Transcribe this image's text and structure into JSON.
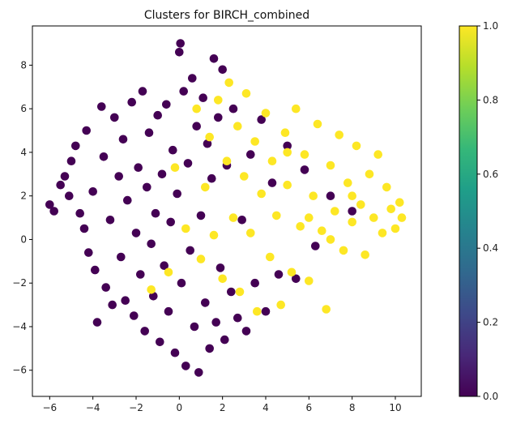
{
  "chart_data": {
    "type": "scatter",
    "title": "Clusters for BIRCH_combined",
    "xlabel": "",
    "ylabel": "",
    "xlim": [
      -6.8,
      11.2
    ],
    "ylim": [
      -7.2,
      9.8
    ],
    "xticks": [
      -6,
      -4,
      -2,
      0,
      2,
      4,
      6,
      8,
      10
    ],
    "yticks": [
      -6,
      -4,
      -2,
      0,
      2,
      4,
      6,
      8
    ],
    "grid": false,
    "colormap": "viridis",
    "colorbar": {
      "range": [
        0.0,
        1.0
      ],
      "ticks": [
        "0.0",
        "0.2",
        "0.4",
        "0.6",
        "0.8",
        "1.0"
      ],
      "stops": [
        "#440154",
        "#482878",
        "#3e4989",
        "#31688e",
        "#26828e",
        "#1f9e89",
        "#35b779",
        "#6ece58",
        "#b5de2b",
        "#fde725"
      ]
    },
    "series": [
      {
        "cluster": 0,
        "color": "#440154",
        "points": [
          [
            -6.0,
            1.6
          ],
          [
            -5.8,
            1.3
          ],
          [
            -5.5,
            2.5
          ],
          [
            -5.3,
            2.9
          ],
          [
            -5.1,
            2.0
          ],
          [
            -5.0,
            3.6
          ],
          [
            -4.8,
            4.3
          ],
          [
            -4.6,
            1.2
          ],
          [
            -4.4,
            0.5
          ],
          [
            -4.3,
            5.0
          ],
          [
            -4.2,
            -0.6
          ],
          [
            -4.0,
            2.2
          ],
          [
            -3.9,
            -1.4
          ],
          [
            -3.8,
            -3.8
          ],
          [
            -3.6,
            6.1
          ],
          [
            -3.5,
            3.8
          ],
          [
            -3.4,
            -2.2
          ],
          [
            -3.2,
            0.9
          ],
          [
            -3.1,
            -3.0
          ],
          [
            -3.0,
            5.6
          ],
          [
            -2.8,
            2.9
          ],
          [
            -2.7,
            -0.8
          ],
          [
            -2.6,
            4.6
          ],
          [
            -2.5,
            -2.8
          ],
          [
            -2.4,
            1.8
          ],
          [
            -2.2,
            6.3
          ],
          [
            -2.1,
            -3.5
          ],
          [
            -2.0,
            0.3
          ],
          [
            -1.9,
            3.3
          ],
          [
            -1.8,
            -1.6
          ],
          [
            -1.7,
            6.8
          ],
          [
            -1.6,
            -4.2
          ],
          [
            -1.5,
            2.4
          ],
          [
            -1.4,
            4.9
          ],
          [
            -1.3,
            -0.2
          ],
          [
            -1.2,
            -2.6
          ],
          [
            -1.1,
            1.2
          ],
          [
            -1.0,
            5.7
          ],
          [
            -0.9,
            -4.7
          ],
          [
            -0.8,
            3.0
          ],
          [
            -0.7,
            -1.2
          ],
          [
            -0.6,
            6.2
          ],
          [
            -0.5,
            -3.3
          ],
          [
            -0.4,
            0.8
          ],
          [
            -0.3,
            4.1
          ],
          [
            -0.2,
            -5.2
          ],
          [
            -0.1,
            2.1
          ],
          [
            0.0,
            8.6
          ],
          [
            0.05,
            9.0
          ],
          [
            0.1,
            -2.0
          ],
          [
            0.2,
            6.8
          ],
          [
            0.3,
            -5.8
          ],
          [
            0.4,
            3.5
          ],
          [
            0.5,
            -0.5
          ],
          [
            0.6,
            7.4
          ],
          [
            0.7,
            -4.0
          ],
          [
            0.8,
            5.2
          ],
          [
            0.9,
            -6.1
          ],
          [
            1.0,
            1.1
          ],
          [
            1.1,
            6.5
          ],
          [
            1.2,
            -2.9
          ],
          [
            1.3,
            4.4
          ],
          [
            1.4,
            -5.0
          ],
          [
            1.5,
            2.8
          ],
          [
            1.6,
            8.3
          ],
          [
            1.7,
            -3.8
          ],
          [
            1.8,
            5.6
          ],
          [
            1.9,
            -1.3
          ],
          [
            2.0,
            7.8
          ],
          [
            2.1,
            -4.6
          ],
          [
            2.2,
            3.4
          ],
          [
            2.4,
            -2.4
          ],
          [
            2.5,
            6.0
          ],
          [
            2.7,
            -3.6
          ],
          [
            2.9,
            0.9
          ],
          [
            3.1,
            -4.2
          ],
          [
            3.3,
            3.9
          ],
          [
            3.5,
            -2.0
          ],
          [
            3.8,
            5.5
          ],
          [
            4.0,
            -3.3
          ],
          [
            4.3,
            2.6
          ],
          [
            4.6,
            -1.6
          ],
          [
            5.0,
            4.3
          ],
          [
            5.4,
            -1.8
          ],
          [
            5.8,
            3.2
          ],
          [
            6.3,
            -0.3
          ],
          [
            7.0,
            2.0
          ],
          [
            8.0,
            1.3
          ]
        ]
      },
      {
        "cluster": 1,
        "color": "#fde725",
        "points": [
          [
            -0.5,
            -1.5
          ],
          [
            -1.3,
            -2.3
          ],
          [
            -0.2,
            3.3
          ],
          [
            0.3,
            0.5
          ],
          [
            0.8,
            6.0
          ],
          [
            1.0,
            -0.9
          ],
          [
            1.2,
            2.4
          ],
          [
            1.4,
            4.7
          ],
          [
            1.6,
            0.2
          ],
          [
            1.8,
            6.4
          ],
          [
            2.0,
            -1.8
          ],
          [
            2.2,
            3.6
          ],
          [
            2.3,
            7.2
          ],
          [
            2.5,
            1.0
          ],
          [
            2.7,
            5.2
          ],
          [
            2.8,
            -2.4
          ],
          [
            3.0,
            2.9
          ],
          [
            3.1,
            6.7
          ],
          [
            3.3,
            0.3
          ],
          [
            3.5,
            4.5
          ],
          [
            3.6,
            -3.3
          ],
          [
            3.8,
            2.1
          ],
          [
            4.0,
            5.8
          ],
          [
            4.2,
            -0.8
          ],
          [
            4.3,
            3.6
          ],
          [
            4.5,
            1.1
          ],
          [
            4.7,
            -3.0
          ],
          [
            4.9,
            4.9
          ],
          [
            5.0,
            2.5
          ],
          [
            5.2,
            -1.5
          ],
          [
            5.4,
            6.0
          ],
          [
            5.6,
            0.6
          ],
          [
            5.8,
            3.9
          ],
          [
            6.0,
            -1.9
          ],
          [
            6.2,
            2.0
          ],
          [
            6.4,
            5.3
          ],
          [
            6.6,
            0.4
          ],
          [
            6.8,
            -3.2
          ],
          [
            7.0,
            3.4
          ],
          [
            7.2,
            1.3
          ],
          [
            7.4,
            4.8
          ],
          [
            7.6,
            -0.5
          ],
          [
            7.8,
            2.6
          ],
          [
            8.0,
            0.8
          ],
          [
            8.2,
            4.3
          ],
          [
            8.4,
            1.6
          ],
          [
            8.6,
            -0.7
          ],
          [
            8.8,
            3.0
          ],
          [
            9.0,
            1.0
          ],
          [
            9.2,
            3.9
          ],
          [
            9.4,
            0.3
          ],
          [
            9.6,
            2.4
          ],
          [
            9.8,
            1.4
          ],
          [
            10.0,
            0.5
          ],
          [
            10.2,
            1.7
          ],
          [
            10.3,
            1.0
          ],
          [
            5.0,
            4.0
          ],
          [
            6.0,
            1.0
          ],
          [
            7.0,
            0.0
          ],
          [
            8.0,
            2.0
          ]
        ]
      }
    ]
  }
}
